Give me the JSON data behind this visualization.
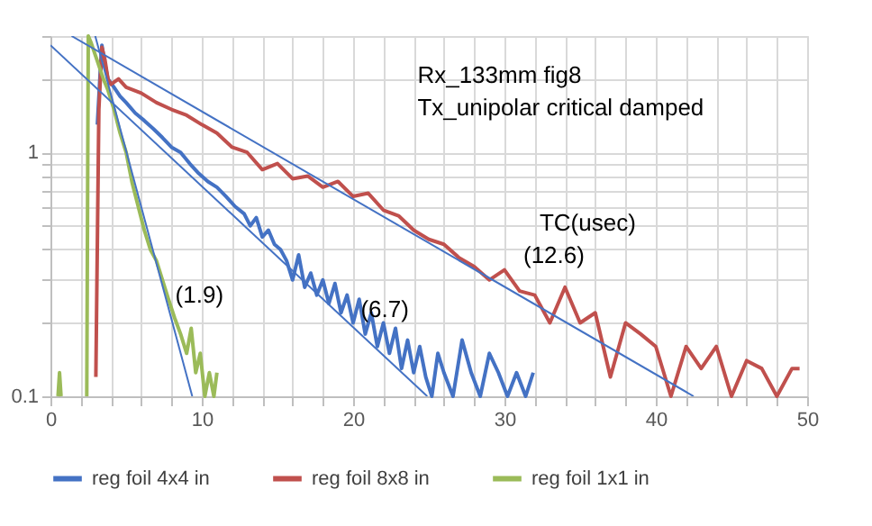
{
  "chart_data": {
    "type": "line",
    "xlabel": "TC(usec)",
    "annotations": [
      "Rx_133mm fig8",
      "Tx_unipolar critical damped",
      "(1.9)",
      "(6.7)",
      "(12.6)"
    ],
    "series": [
      {
        "name": "reg foil 4x4 in",
        "color": "#4472c4",
        "x": [
          3.1,
          3.3,
          3.4,
          3.6,
          3.8,
          4.2,
          4.6,
          5.0,
          5.6,
          6.2,
          6.8,
          7.4,
          8.0,
          8.6,
          9.2,
          9.8,
          10.4,
          11.0,
          11.6,
          12.2,
          12.8,
          13.2,
          13.6,
          14.0,
          14.4,
          14.8,
          15.2,
          15.6,
          16.0,
          16.4,
          16.8,
          17.2,
          17.6,
          18.0,
          18.4,
          18.8,
          19.2,
          19.6,
          20.0,
          20.4,
          20.8,
          21.2,
          21.6,
          22.0,
          22.4,
          22.8,
          23.2,
          23.6,
          24.0,
          24.4,
          24.8,
          25.2,
          25.6,
          26.0,
          26.6,
          27.2,
          27.8,
          28.4,
          29.0,
          29.6,
          30.2,
          30.8,
          31.4,
          31.9
        ],
        "values": [
          1.3,
          2.2,
          2.75,
          2.3,
          2.0,
          1.85,
          1.7,
          1.6,
          1.45,
          1.35,
          1.25,
          1.15,
          1.05,
          1.0,
          0.9,
          0.82,
          0.76,
          0.72,
          0.66,
          0.6,
          0.56,
          0.5,
          0.54,
          0.45,
          0.48,
          0.42,
          0.4,
          0.36,
          0.3,
          0.38,
          0.28,
          0.32,
          0.26,
          0.3,
          0.24,
          0.29,
          0.22,
          0.26,
          0.2,
          0.25,
          0.18,
          0.22,
          0.16,
          0.2,
          0.15,
          0.19,
          0.13,
          0.17,
          0.125,
          0.16,
          0.12,
          0.1,
          0.15,
          0.125,
          0.1,
          0.17,
          0.125,
          0.1,
          0.15,
          0.125,
          0.1,
          0.125,
          0.1,
          0.125
        ]
      },
      {
        "name": "reg foil 8x8 in",
        "color": "#c0504d",
        "x": [
          3.0,
          3.2,
          3.4,
          3.6,
          3.8,
          4.0,
          4.5,
          5,
          6,
          7,
          8,
          9,
          10,
          11,
          12,
          13,
          14,
          15,
          16,
          17,
          18,
          19,
          20,
          21,
          22,
          23,
          24,
          25,
          26,
          27,
          28,
          29,
          30,
          31,
          32,
          33,
          34,
          35,
          36,
          37,
          38,
          39,
          40,
          41,
          42,
          43,
          44,
          45,
          46,
          47,
          48,
          49,
          49.5
        ],
        "values": [
          0.12,
          1.5,
          2.7,
          2.4,
          2.0,
          1.9,
          2.0,
          1.85,
          1.75,
          1.6,
          1.5,
          1.42,
          1.3,
          1.2,
          1.05,
          1.0,
          0.85,
          0.9,
          0.78,
          0.8,
          0.72,
          0.76,
          0.66,
          0.68,
          0.58,
          0.55,
          0.48,
          0.44,
          0.42,
          0.37,
          0.34,
          0.3,
          0.33,
          0.27,
          0.26,
          0.2,
          0.28,
          0.2,
          0.22,
          0.12,
          0.2,
          0.18,
          0.16,
          0.1,
          0.16,
          0.13,
          0.16,
          0.1,
          0.14,
          0.13,
          0.1,
          0.13,
          0.13
        ]
      },
      {
        "name": "reg foil 1x1 in",
        "color": "#9bbb59",
        "x": [
          0.5,
          0.6,
          0.7,
          1.5,
          2.4,
          2.5,
          2.7,
          3.5,
          3.8,
          4.2,
          4.6,
          5.0,
          5.4,
          5.8,
          6.2,
          6.6,
          7.0,
          7.4,
          7.8,
          8.2,
          8.6,
          9.0,
          9.3,
          9.6,
          9.9,
          10.2,
          10.5,
          10.8,
          11.0
        ],
        "values": [
          0.1,
          0.125,
          0.1,
          null,
          0.1,
          3.0,
          2.8,
          2.0,
          1.8,
          1.5,
          1.2,
          1.0,
          0.75,
          0.6,
          0.48,
          0.4,
          0.36,
          0.3,
          0.25,
          0.21,
          0.18,
          0.15,
          0.19,
          0.125,
          0.15,
          0.1,
          0.125,
          0.1,
          0.125
        ]
      },
      {
        "type": "line",
        "color": "#4472c4",
        "x": [
          0,
          24.9
        ],
        "values": [
          2.75,
          0.1
        ]
      },
      {
        "type": "line",
        "color": "#4472c4",
        "x": [
          1.4,
          42.5
        ],
        "values": [
          3,
          0.1
        ]
      },
      {
        "type": "line",
        "color": "#4472c4",
        "x": [
          2.96,
          9.37
        ],
        "values": [
          3,
          0.1
        ]
      }
    ],
    "xlim": [
      0,
      50
    ],
    "xticks": [
      0,
      {
        "value": 2,
        "label": null
      },
      {
        "value": 4,
        "label": null
      },
      {
        "value": 6,
        "label": null
      },
      {
        "value": 8,
        "label": null
      },
      10,
      {
        "value": 12,
        "label": null
      },
      {
        "value": 14,
        "label": null
      },
      {
        "value": 16,
        "label": null
      },
      {
        "value": 18,
        "label": null
      },
      20,
      {
        "value": 22,
        "label": null
      },
      {
        "value": 24,
        "label": null
      },
      {
        "value": 26,
        "label": null
      },
      {
        "value": 28,
        "label": null
      },
      30,
      {
        "value": 32,
        "label": null
      },
      {
        "value": 34,
        "label": null
      },
      {
        "value": 36,
        "label": null
      },
      {
        "value": 38,
        "label": null
      },
      40,
      {
        "value": 42,
        "label": null
      },
      {
        "value": 44,
        "label": null
      },
      {
        "value": 46,
        "label": null
      },
      {
        "value": 48,
        "label": null
      },
      50
    ],
    "ylim": [
      0.1,
      3
    ],
    "yticks": [
      0.1,
      {
        "value": 0.2,
        "label": null
      },
      {
        "value": 0.3,
        "label": null
      },
      {
        "value": 0.4,
        "label": null
      },
      {
        "value": 0.5,
        "label": null
      },
      {
        "value": 0.6,
        "label": null
      },
      {
        "value": 0.7,
        "label": null
      },
      {
        "value": 0.8,
        "label": null
      },
      {
        "value": 0.9,
        "label": null
      },
      1,
      {
        "value": 2,
        "label": null
      },
      {
        "value": 3,
        "label": null
      }
    ],
    "log": "y",
    "grid": true,
    "legend": "bottom"
  }
}
